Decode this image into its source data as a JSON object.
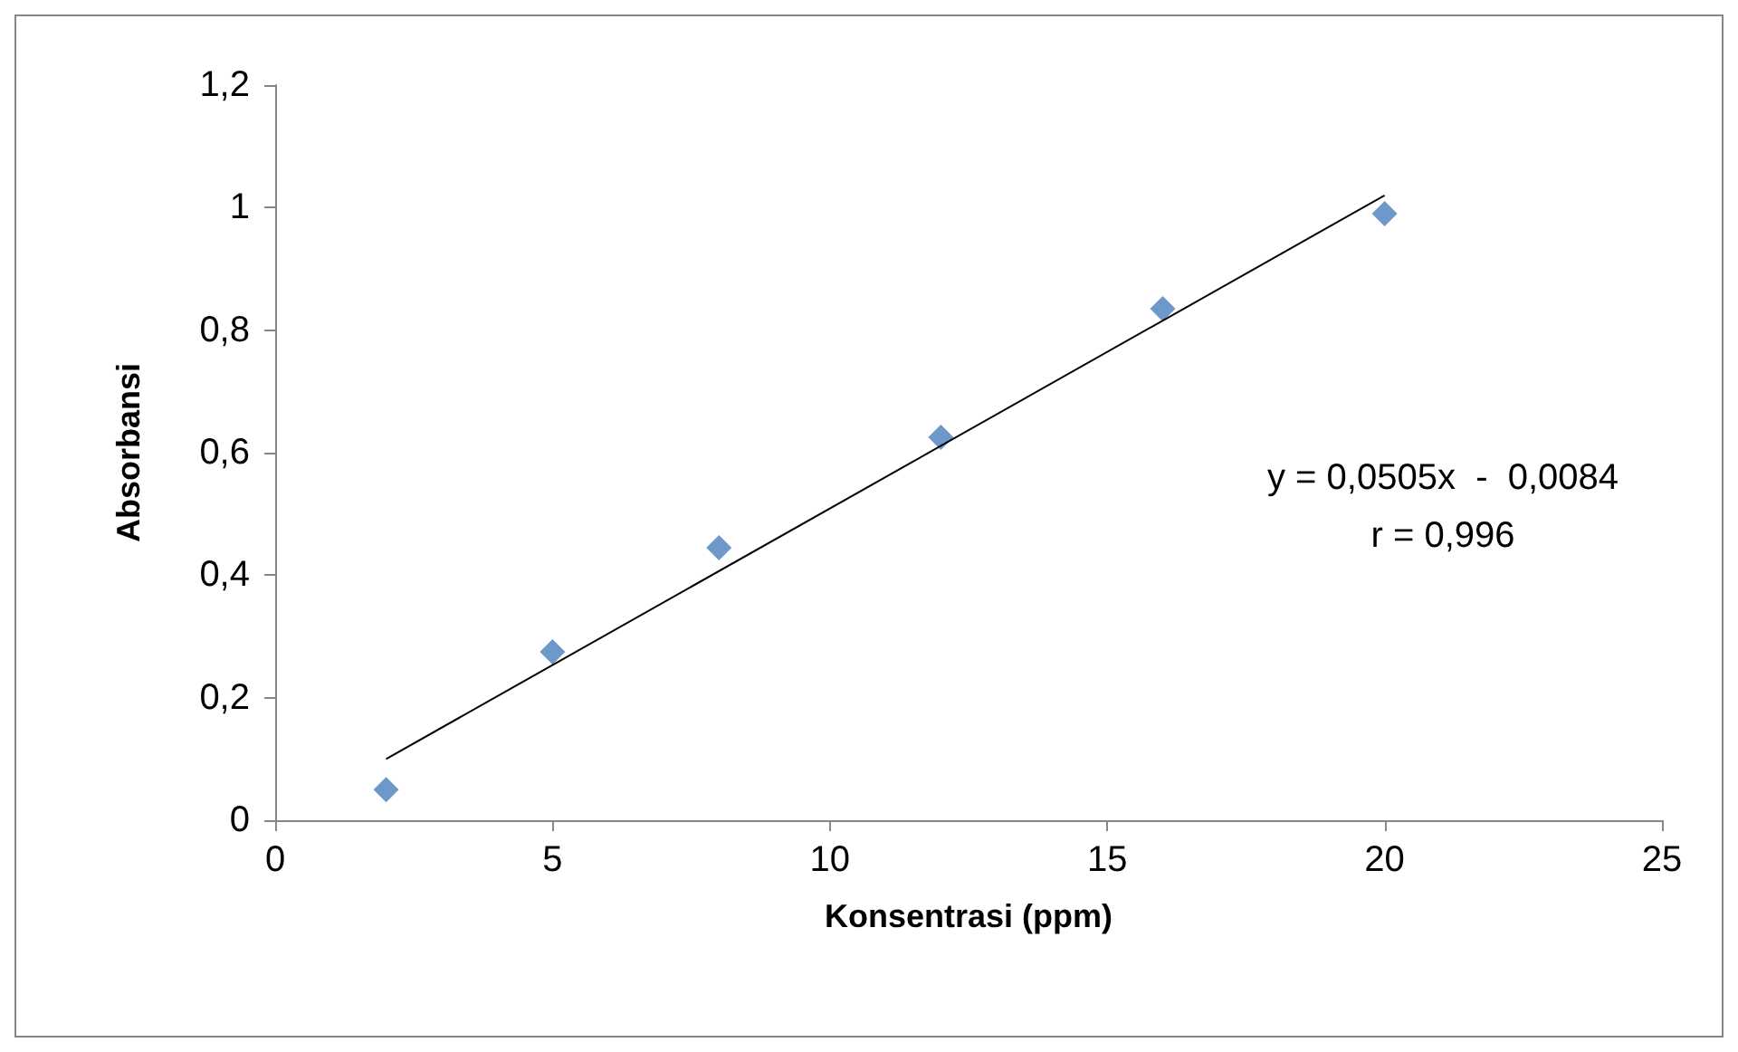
{
  "chart_data": {
    "type": "scatter",
    "xlabel": "Konsentrasi (ppm)",
    "ylabel": "Absorbansi",
    "series": [
      {
        "color": "#4a7ebb",
        "marker": "diamond",
        "x": [
          2,
          5,
          8,
          12,
          16,
          20
        ],
        "values": [
          0.05,
          0.275,
          0.445,
          0.625,
          0.835,
          0.99
        ]
      },
      {
        "type": "line",
        "color": "#000000",
        "marker": "none",
        "line_style": "solid",
        "x": [
          2,
          20
        ],
        "values": [
          0.1,
          1.02
        ]
      }
    ],
    "xlim": [
      0,
      25
    ],
    "xticks": [
      0,
      5,
      10,
      15,
      20,
      25
    ],
    "ylim": [
      0,
      1.2
    ],
    "yticks": [
      0,
      {
        "value": 0.2,
        "label": "0,2"
      },
      {
        "value": 0.4,
        "label": "0,4"
      },
      {
        "value": 0.6,
        "label": "0,6"
      },
      {
        "value": 0.8,
        "label": "0,8"
      },
      1,
      {
        "value": 1.2,
        "label": "1,2"
      }
    ],
    "grid": false,
    "annotations": [
      "y = 0,0505x  -  0,0084",
      "r = 0,996"
    ]
  }
}
